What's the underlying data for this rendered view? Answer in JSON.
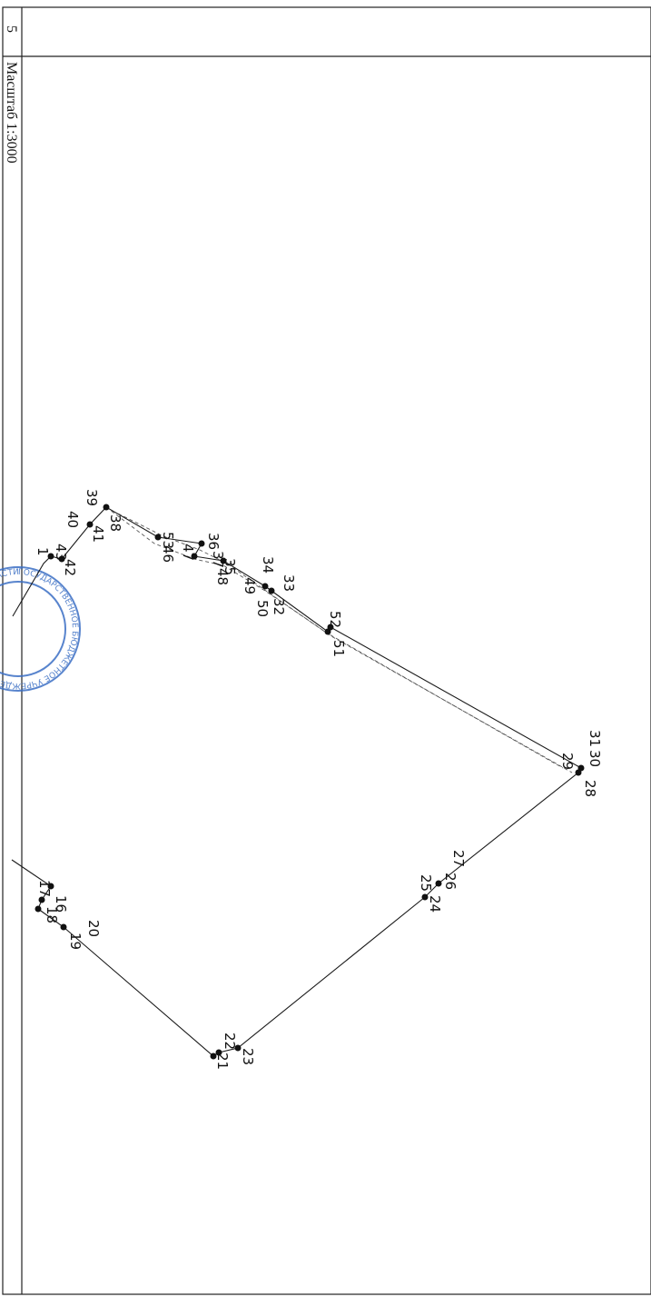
{
  "sheet": {
    "number": "5",
    "scale_label": "Масштаб 1:3000"
  },
  "plan": {
    "points": [
      {
        "id": "pt-16",
        "label": "16"
      },
      {
        "id": "pt-17",
        "label": "17"
      },
      {
        "id": "pt-18",
        "label": "18"
      },
      {
        "id": "pt-19",
        "label": "19"
      },
      {
        "id": "pt-20",
        "label": "20"
      },
      {
        "id": "pt-21",
        "label": "21"
      },
      {
        "id": "pt-22",
        "label": "22"
      },
      {
        "id": "pt-23",
        "label": "23"
      },
      {
        "id": "pt-24",
        "label": "24"
      },
      {
        "id": "pt-25",
        "label": "25"
      },
      {
        "id": "pt-26",
        "label": "26"
      },
      {
        "id": "pt-27",
        "label": "27"
      },
      {
        "id": "pt-28",
        "label": "28"
      },
      {
        "id": "pt-29",
        "label": "29"
      },
      {
        "id": "pt-30",
        "label": "30"
      },
      {
        "id": "pt-31",
        "label": "31"
      },
      {
        "id": "pt-32",
        "label": "32"
      },
      {
        "id": "pt-33",
        "label": "33"
      },
      {
        "id": "pt-34",
        "label": "34"
      },
      {
        "id": "pt-35",
        "label": "35"
      },
      {
        "id": "pt-36",
        "label": "36"
      },
      {
        "id": "pt-37",
        "label": "37"
      },
      {
        "id": "pt-38",
        "label": "38"
      },
      {
        "id": "pt-39",
        "label": "39"
      },
      {
        "id": "pt-40",
        "label": "40"
      },
      {
        "id": "pt-41",
        "label": "41"
      },
      {
        "id": "pt-42",
        "label": "42"
      },
      {
        "id": "pt-43",
        "label": "43"
      },
      {
        "id": "pt-46",
        "label": "46"
      },
      {
        "id": "pt-47",
        "label": "47"
      },
      {
        "id": "pt-48",
        "label": "48"
      },
      {
        "id": "pt-49",
        "label": "49"
      },
      {
        "id": "pt-50",
        "label": "50"
      },
      {
        "id": "pt-51",
        "label": "51"
      },
      {
        "id": "pt-52",
        "label": "52"
      },
      {
        "id": "pt-53",
        "label": "53"
      },
      {
        "id": "pt-1",
        "label": "1"
      }
    ]
  },
  "stamp": {
    "text": "ГОСУДАРСТВЕННОЕ БЮДЖЕТНОЕ УЧРЕЖДЕНИЕ ПО ВОЛГОГРАДСКОЙ ОБЛАСТИ"
  }
}
